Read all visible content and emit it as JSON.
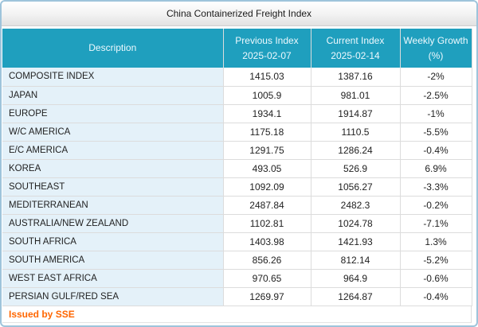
{
  "title": "China Containerized Freight Index",
  "table": {
    "columns": [
      {
        "line1": "Description",
        "line2": ""
      },
      {
        "line1": "Previous Index",
        "line2": "2025-02-07"
      },
      {
        "line1": "Current Index",
        "line2": "2025-02-14"
      },
      {
        "line1": "Weekly Growth",
        "line2": "(%)"
      }
    ],
    "rows": [
      {
        "description": "COMPOSITE INDEX",
        "previous": "1415.03",
        "current": "1387.16",
        "growth": "-2%"
      },
      {
        "description": "JAPAN",
        "previous": "1005.9",
        "current": "981.01",
        "growth": "-2.5%"
      },
      {
        "description": "EUROPE",
        "previous": "1934.1",
        "current": "1914.87",
        "growth": "-1%"
      },
      {
        "description": "W/C AMERICA",
        "previous": "1175.18",
        "current": "1110.5",
        "growth": "-5.5%"
      },
      {
        "description": "E/C AMERICA",
        "previous": "1291.75",
        "current": "1286.24",
        "growth": "-0.4%"
      },
      {
        "description": "KOREA",
        "previous": "493.05",
        "current": "526.9",
        "growth": "6.9%"
      },
      {
        "description": "SOUTHEAST",
        "previous": "1092.09",
        "current": "1056.27",
        "growth": "-3.3%"
      },
      {
        "description": "MEDITERRANEAN",
        "previous": "2487.84",
        "current": "2482.3",
        "growth": "-0.2%"
      },
      {
        "description": "AUSTRALIA/NEW ZEALAND",
        "previous": "1102.81",
        "current": "1024.78",
        "growth": "-7.1%"
      },
      {
        "description": "SOUTH AFRICA",
        "previous": "1403.98",
        "current": "1421.93",
        "growth": "1.3%"
      },
      {
        "description": "SOUTH AMERICA",
        "previous": "856.26",
        "current": "812.14",
        "growth": "-5.2%"
      },
      {
        "description": "WEST EAST AFRICA",
        "previous": "970.65",
        "current": "964.9",
        "growth": "-0.6%"
      },
      {
        "description": "PERSIAN GULF/RED SEA",
        "previous": "1269.97",
        "current": "1264.87",
        "growth": "-0.4%"
      }
    ]
  },
  "footer": {
    "issued_by": "Issued by SSE"
  },
  "colors": {
    "header_teal": "#1f9fbe",
    "description_cell_bg": "#e4f1f9",
    "outer_border_blue": "#9ec4db",
    "issuer_orange": "#ff6600",
    "cell_border": "#dcdcdc"
  }
}
